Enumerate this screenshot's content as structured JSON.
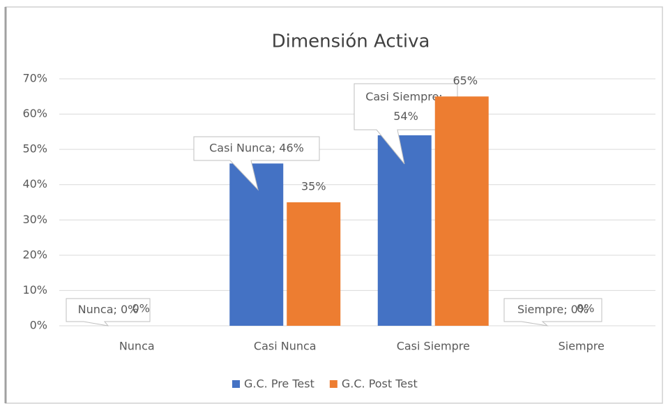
{
  "chart_data": {
    "type": "bar",
    "title": "Dimensión Activa",
    "categories": [
      "Nunca",
      "Casi Nunca",
      "Casi Siempre",
      "Siempre"
    ],
    "series": [
      {
        "name": "G.C. Pre Test",
        "color": "#4472c4",
        "values": [
          0,
          46,
          54,
          0
        ],
        "value_labels": [
          "Nunca; 0%",
          "Casi Nunca; 46%",
          "Casi Siempre; 54%",
          "Siempre; 0%"
        ]
      },
      {
        "name": "G.C. Post Test",
        "color": "#ed7d31",
        "values": [
          0,
          35,
          65,
          0
        ],
        "value_labels": [
          "0%",
          "35%",
          "65%",
          "0%"
        ]
      }
    ],
    "ylim": [
      0,
      70
    ],
    "yticks": [
      {
        "value": 0,
        "label": "0%"
      },
      {
        "value": 10,
        "label": "10%"
      },
      {
        "value": 20,
        "label": "20%"
      },
      {
        "value": 30,
        "label": "30%"
      },
      {
        "value": 40,
        "label": "40%"
      },
      {
        "value": 50,
        "label": "50%"
      },
      {
        "value": 60,
        "label": "60%"
      },
      {
        "value": 70,
        "label": "70%"
      }
    ],
    "grid": true,
    "legend": "bottom"
  }
}
